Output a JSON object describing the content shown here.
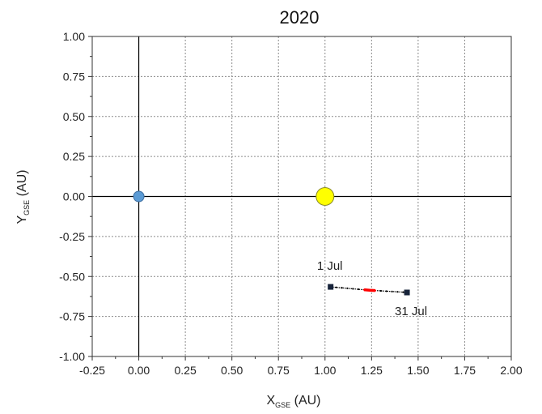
{
  "chart_data": {
    "type": "scatter",
    "title": "2020",
    "xlabel": {
      "main": "X",
      "sub": "GSE",
      "unit": " (AU)"
    },
    "ylabel": {
      "main": "Y",
      "sub": "GSE",
      "unit": " (AU)"
    },
    "xlim": [
      -0.25,
      2.0
    ],
    "ylim": [
      -1.0,
      1.0
    ],
    "x_ticks": [
      -0.25,
      0.0,
      0.25,
      0.5,
      0.75,
      1.0,
      1.25,
      1.5,
      1.75,
      2.0
    ],
    "y_ticks": [
      -1.0,
      -0.75,
      -0.5,
      -0.25,
      0.0,
      0.25,
      0.5,
      0.75,
      1.0
    ],
    "x_tick_labels": [
      "-0.25",
      "0.00",
      "0.25",
      "0.50",
      "0.75",
      "1.00",
      "1.25",
      "1.50",
      "1.75",
      "2.00"
    ],
    "y_tick_labels": [
      "-1.00",
      "-0.75",
      "-0.50",
      "-0.25",
      "0.00",
      "0.25",
      "0.50",
      "0.75",
      "1.00"
    ],
    "grid": true,
    "bodies": [
      {
        "id": "earth",
        "x": 0.0,
        "y": 0.0,
        "color": "#5b9bd5"
      },
      {
        "id": "sun",
        "x": 1.0,
        "y": 0.0,
        "color": "#ffff00"
      }
    ],
    "trajectory": {
      "color": "#000000",
      "highlight_color": "#ff0000",
      "points": [
        {
          "x": 1.03,
          "y": -0.565
        },
        {
          "x": 1.06,
          "y": -0.568
        },
        {
          "x": 1.09,
          "y": -0.571
        },
        {
          "x": 1.12,
          "y": -0.574
        },
        {
          "x": 1.15,
          "y": -0.577
        },
        {
          "x": 1.18,
          "y": -0.58
        },
        {
          "x": 1.21,
          "y": -0.583
        },
        {
          "x": 1.24,
          "y": -0.586
        },
        {
          "x": 1.27,
          "y": -0.588
        },
        {
          "x": 1.3,
          "y": -0.59
        },
        {
          "x": 1.33,
          "y": -0.592
        },
        {
          "x": 1.36,
          "y": -0.594
        },
        {
          "x": 1.39,
          "y": -0.596
        },
        {
          "x": 1.42,
          "y": -0.598
        },
        {
          "x": 1.44,
          "y": -0.6
        }
      ],
      "highlight_range": [
        1.2,
        1.27
      ],
      "start": {
        "x": 1.03,
        "y": -0.565,
        "label": "1 Jul"
      },
      "end": {
        "x": 1.44,
        "y": -0.6,
        "label": "31 Jul"
      }
    }
  }
}
